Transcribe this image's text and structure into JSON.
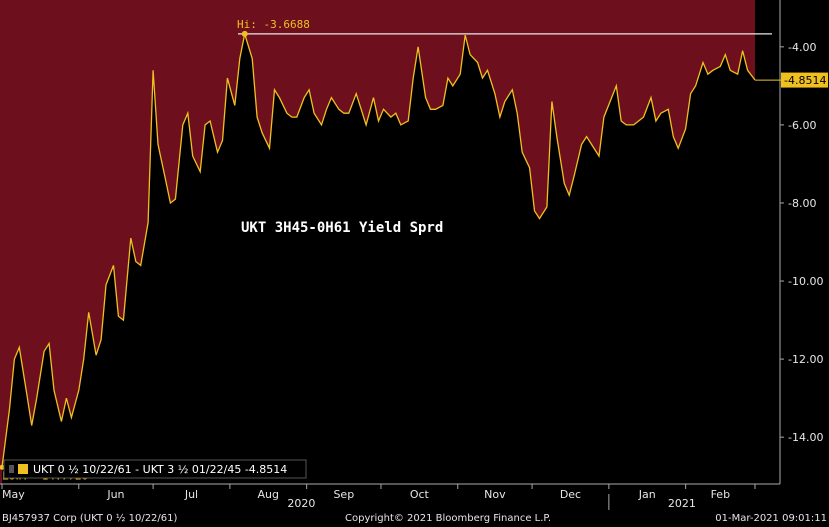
{
  "chart_data": {
    "type": "area",
    "title": "UKT 3H45-0H61 Yield Sprd",
    "ylim": [
      -15.2,
      -2.8
    ],
    "y_ticks": [
      -4.0,
      -6.0,
      -8.0,
      -10.0,
      -12.0,
      -14.0
    ],
    "y_tick_labels": [
      "-4.00",
      "-6.00",
      "-8.00",
      "-10.00",
      "-12.00",
      "-14.00"
    ],
    "x_labels": [
      "May",
      "Jun",
      "Jul",
      "Aug",
      "Sep",
      "Oct",
      "Nov",
      "Dec",
      "Jan",
      "Feb"
    ],
    "year_labels": [
      "2020",
      "2021"
    ],
    "colors": {
      "fill_above": "#6e0f1e",
      "fill_below": "#000000",
      "line": "#f0c020",
      "hi_line": "#e8e8e8",
      "label_bg": "#f0c020"
    },
    "high": {
      "label": "Hi: -3.6688",
      "value": -3.6688
    },
    "low": {
      "label": "Low: -14.7726",
      "value": -14.7726
    },
    "last": {
      "label": "-4.8514",
      "value": -4.8514
    },
    "legend": {
      "label": "UKT 0 ½ 10/22/61 - UKT 3 ½ 01/22/45 -4.8514",
      "placement": "bottom-left"
    },
    "series": [
      {
        "name": "UKT 0 ½ 10/22/61 - UKT 3 ½ 01/22/45",
        "x": [
          "2020-05-01",
          "2020-05-04",
          "2020-05-06",
          "2020-05-08",
          "2020-05-11",
          "2020-05-13",
          "2020-05-15",
          "2020-05-18",
          "2020-05-20",
          "2020-05-22",
          "2020-05-25",
          "2020-05-27",
          "2020-05-29",
          "2020-06-01",
          "2020-06-03",
          "2020-06-05",
          "2020-06-08",
          "2020-06-10",
          "2020-06-12",
          "2020-06-15",
          "2020-06-17",
          "2020-06-19",
          "2020-06-22",
          "2020-06-24",
          "2020-06-26",
          "2020-06-29",
          "2020-07-01",
          "2020-07-03",
          "2020-07-06",
          "2020-07-08",
          "2020-07-10",
          "2020-07-13",
          "2020-07-15",
          "2020-07-17",
          "2020-07-20",
          "2020-07-22",
          "2020-07-24",
          "2020-07-27",
          "2020-07-29",
          "2020-07-31",
          "2020-08-03",
          "2020-08-05",
          "2020-08-07",
          "2020-08-10",
          "2020-08-12",
          "2020-08-14",
          "2020-08-17",
          "2020-08-19",
          "2020-08-21",
          "2020-08-24",
          "2020-08-26",
          "2020-08-28",
          "2020-08-31",
          "2020-09-02",
          "2020-09-04",
          "2020-09-07",
          "2020-09-09",
          "2020-09-11",
          "2020-09-14",
          "2020-09-16",
          "2020-09-18",
          "2020-09-21",
          "2020-09-23",
          "2020-09-25",
          "2020-09-28",
          "2020-09-30",
          "2020-10-02",
          "2020-10-05",
          "2020-10-07",
          "2020-10-09",
          "2020-10-12",
          "2020-10-14",
          "2020-10-16",
          "2020-10-19",
          "2020-10-21",
          "2020-10-23",
          "2020-10-26",
          "2020-10-28",
          "2020-10-30",
          "2020-11-02",
          "2020-11-04",
          "2020-11-06",
          "2020-11-09",
          "2020-11-11",
          "2020-11-13",
          "2020-11-16",
          "2020-11-18",
          "2020-11-20",
          "2020-11-23",
          "2020-11-25",
          "2020-11-27",
          "2020-11-30",
          "2020-12-02",
          "2020-12-04",
          "2020-12-07",
          "2020-12-09",
          "2020-12-11",
          "2020-12-14",
          "2020-12-16",
          "2020-12-18",
          "2020-12-21",
          "2020-12-23",
          "2020-12-28",
          "2020-12-30",
          "2021-01-04",
          "2021-01-06",
          "2021-01-08",
          "2021-01-11",
          "2021-01-13",
          "2021-01-15",
          "2021-01-18",
          "2021-01-20",
          "2021-01-22",
          "2021-01-25",
          "2021-01-27",
          "2021-01-29",
          "2021-02-01",
          "2021-02-03",
          "2021-02-05",
          "2021-02-08",
          "2021-02-10",
          "2021-02-12",
          "2021-02-15",
          "2021-02-17",
          "2021-02-19",
          "2021-02-22",
          "2021-02-24",
          "2021-02-26",
          "2021-03-01"
        ],
        "values": [
          -14.77,
          -13.3,
          -12.0,
          -11.7,
          -12.9,
          -13.7,
          -13.0,
          -11.8,
          -11.6,
          -12.8,
          -13.6,
          -13.0,
          -13.5,
          -12.8,
          -12.0,
          -10.8,
          -11.9,
          -11.5,
          -10.1,
          -9.6,
          -10.9,
          -11.0,
          -8.9,
          -9.5,
          -9.6,
          -8.5,
          -4.6,
          -6.5,
          -7.4,
          -8.0,
          -7.9,
          -6.0,
          -5.7,
          -6.8,
          -7.2,
          -6.0,
          -5.9,
          -6.7,
          -6.4,
          -4.8,
          -5.5,
          -4.3,
          -3.67,
          -4.3,
          -5.8,
          -6.2,
          -6.6,
          -5.1,
          -5.3,
          -5.7,
          -5.8,
          -5.8,
          -5.3,
          -5.1,
          -5.7,
          -6.0,
          -5.6,
          -5.3,
          -5.6,
          -5.7,
          -5.7,
          -5.2,
          -5.6,
          -6.0,
          -5.3,
          -5.9,
          -5.6,
          -5.8,
          -5.7,
          -6.0,
          -5.9,
          -4.8,
          -4.0,
          -5.3,
          -5.6,
          -5.6,
          -5.5,
          -4.8,
          -5.0,
          -4.7,
          -3.7,
          -4.2,
          -4.4,
          -4.8,
          -4.6,
          -5.2,
          -5.8,
          -5.4,
          -5.1,
          -5.7,
          -6.7,
          -7.1,
          -8.2,
          -8.4,
          -8.1,
          -5.4,
          -6.3,
          -7.5,
          -7.8,
          -7.3,
          -6.5,
          -6.3,
          -6.8,
          -5.8,
          -5.0,
          -5.9,
          -6.0,
          -6.0,
          -5.9,
          -5.8,
          -5.3,
          -5.9,
          -5.7,
          -5.6,
          -6.3,
          -6.6,
          -6.1,
          -5.2,
          -5.0,
          -4.4,
          -4.7,
          -4.6,
          -4.5,
          -4.2,
          -4.6,
          -4.7,
          -4.1,
          -4.6,
          -4.85
        ]
      }
    ]
  },
  "footer": {
    "left": "BJ457937 Corp (UKT 0 ½ 10/22/61)",
    "center": "Copyright© 2021 Bloomberg Finance L.P.",
    "right": "01-Mar-2021 09:01:11"
  }
}
